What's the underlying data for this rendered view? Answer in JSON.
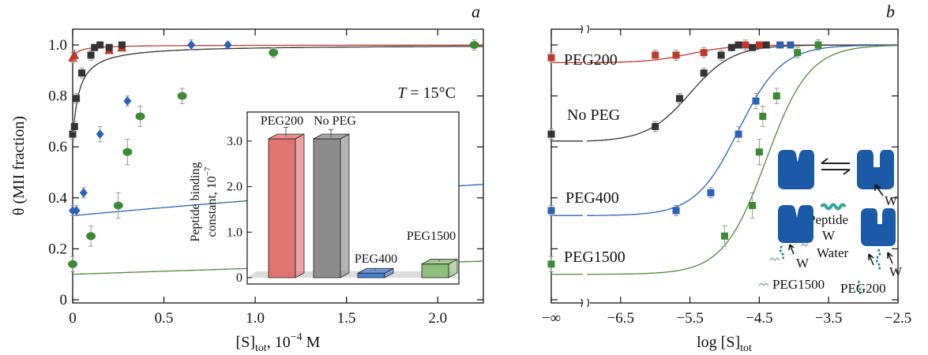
{
  "colors": {
    "peg200": "#c0392b",
    "nopeg": "#333333",
    "peg400": "#2a62b8",
    "peg1500": "#4f8a3a",
    "green_marker": "#3d8a35",
    "axis": "#111111",
    "protein": "#1a5aa6",
    "peptide": "#2fa59a"
  },
  "chart_data": [
    {
      "panel": "a",
      "type": "scatter",
      "xlabel_main": "[S]",
      "xlabel_sub": "tot",
      "xlabel_rest": ", 10",
      "xlabel_sup": "−4",
      "xlabel_unit": " M",
      "ylabel": "θ (MII fraction)",
      "annotation_T": "T",
      "annotation_rest": " = 15°C",
      "xlim": [
        0,
        2.25
      ],
      "ylim": [
        0,
        1.05
      ],
      "xticks": [
        "0",
        "0.5",
        "1.0",
        "1.5",
        "2.0"
      ],
      "xtick_values": [
        0,
        0.5,
        1.0,
        1.5,
        2.0
      ],
      "yticks": [
        "0",
        "0.2",
        "0.4",
        "0.6",
        "0.8",
        "1.0"
      ],
      "ytick_values": [
        0,
        0.2,
        0.4,
        0.6,
        0.8,
        1.0
      ],
      "series": [
        {
          "key": "peg200",
          "marker": "triangle",
          "points": [
            [
              0.0,
              0.95
            ],
            [
              0.01,
              0.96
            ],
            [
              0.2,
              0.98
            ],
            [
              0.27,
              0.99
            ]
          ],
          "errors": [
            0.02,
            0.02,
            0.01,
            0.01
          ],
          "curve": {
            "theta0": 0.95,
            "K": 30
          }
        },
        {
          "key": "nopeg",
          "marker": "square",
          "points": [
            [
              0.0,
              0.65
            ],
            [
              0.01,
              0.68
            ],
            [
              0.02,
              0.79
            ],
            [
              0.05,
              0.89
            ],
            [
              0.1,
              0.96
            ],
            [
              0.12,
              0.99
            ],
            [
              0.15,
              1.0
            ],
            [
              0.2,
              0.99
            ],
            [
              0.27,
              1.0
            ]
          ],
          "errors": [
            0.02,
            0.02,
            0.02,
            0.02,
            0.02,
            0.01,
            0.01,
            0.01,
            0.01
          ],
          "curve": {
            "theta0": 0.62,
            "K": 30
          }
        },
        {
          "key": "peg400",
          "marker": "diamond",
          "points": [
            [
              0.0,
              0.35
            ],
            [
              0.02,
              0.35
            ],
            [
              0.06,
              0.42
            ],
            [
              0.15,
              0.65
            ],
            [
              0.3,
              0.78
            ],
            [
              0.65,
              1.0
            ],
            [
              0.85,
              1.0
            ]
          ],
          "errors": [
            0.02,
            0.02,
            0.02,
            0.03,
            0.02,
            0.02,
            0.01
          ],
          "curve": {
            "theta0": 0.33,
            "K": 0.1
          }
        },
        {
          "key": "peg1500",
          "marker": "circle",
          "points": [
            [
              0.0,
              0.14
            ],
            [
              0.1,
              0.25
            ],
            [
              0.25,
              0.37
            ],
            [
              0.3,
              0.58
            ],
            [
              0.37,
              0.72
            ],
            [
              0.6,
              0.8
            ],
            [
              1.1,
              0.97
            ],
            [
              2.2,
              1.0
            ]
          ],
          "errors": [
            0.03,
            0.04,
            0.05,
            0.05,
            0.04,
            0.03,
            0.02,
            0.02
          ],
          "curve": {
            "theta0": 0.1,
            "K": 0.027
          }
        }
      ],
      "inset": {
        "type": "bar",
        "ylabel_line1": "Peptide binding",
        "ylabel_line2": "constant, 10",
        "ylabel_sup": "−7",
        "ylim": [
          0,
          3.5
        ],
        "yticks": [
          "0",
          "1.0",
          "2.0",
          "3.0"
        ],
        "ytick_values": [
          0,
          1.0,
          2.0,
          3.0
        ],
        "categories": [
          "PEG200",
          "No PEG",
          "PEG400",
          "PEG1500"
        ],
        "values": [
          3.05,
          3.05,
          0.1,
          0.3
        ],
        "errors": [
          0.2,
          0.15,
          0.05,
          0.05
        ],
        "bar_colors": [
          "#e07470",
          "#8c8c8c",
          "#4a7fcf",
          "#8fbf7a"
        ]
      }
    },
    {
      "panel": "b",
      "type": "scatter",
      "xlabel_main": "log [S]",
      "xlabel_sub": "tot",
      "xlim": [
        -7.5,
        -2.5
      ],
      "ylim": [
        0,
        1.05
      ],
      "xticks": [
        "−∞",
        "−6.5",
        "−5.5",
        "−4.5",
        "−3.5",
        "−2.5"
      ],
      "xtick_values": [
        -7.5,
        -6.5,
        -5.5,
        -4.5,
        -3.5,
        -2.5
      ],
      "ytick_values": [
        0,
        0.2,
        0.4,
        0.6,
        0.8,
        1.0
      ],
      "axis_break_x": -7.0,
      "series_labels": [
        "PEG200",
        "No PEG",
        "PEG400",
        "PEG1500"
      ],
      "series": [
        {
          "key": "peg200",
          "points": [
            [
              -7.5,
              0.95
            ],
            [
              -6.0,
              0.96
            ],
            [
              -5.7,
              0.96
            ],
            [
              -5.3,
              0.97
            ],
            [
              -4.7,
              1.0
            ],
            [
              -4.5,
              1.0
            ]
          ],
          "errors": [
            0.02,
            0.02,
            0.02,
            0.02,
            0.02,
            0.01
          ],
          "curve": {
            "theta0": 0.93,
            "log_mid": -5.5
          }
        },
        {
          "key": "nopeg",
          "points": [
            [
              -7.5,
              0.65
            ],
            [
              -6.0,
              0.68
            ],
            [
              -5.65,
              0.79
            ],
            [
              -5.3,
              0.89
            ],
            [
              -5.05,
              0.96
            ],
            [
              -4.9,
              0.99
            ],
            [
              -4.8,
              1.0
            ],
            [
              -4.6,
              0.99
            ],
            [
              -4.4,
              1.0
            ],
            [
              -4.2,
              1.0
            ]
          ],
          "errors": [
            0.02,
            0.02,
            0.02,
            0.02,
            0.02,
            0.01,
            0.01,
            0.01,
            0.01,
            0.01
          ],
          "curve": {
            "theta0": 0.62,
            "log_mid": -5.5
          }
        },
        {
          "key": "peg400",
          "points": [
            [
              -7.5,
              0.35
            ],
            [
              -5.7,
              0.35
            ],
            [
              -5.2,
              0.42
            ],
            [
              -4.8,
              0.65
            ],
            [
              -4.55,
              0.78
            ],
            [
              -4.2,
              1.0
            ],
            [
              -4.05,
              1.0
            ]
          ],
          "errors": [
            0.02,
            0.02,
            0.02,
            0.03,
            0.03,
            0.01,
            0.01
          ],
          "curve": {
            "theta0": 0.33,
            "log_mid": -4.8
          }
        },
        {
          "key": "peg1500",
          "points": [
            [
              -7.5,
              0.14
            ],
            [
              -5.0,
              0.25
            ],
            [
              -4.6,
              0.37
            ],
            [
              -4.5,
              0.58
            ],
            [
              -4.45,
              0.72
            ],
            [
              -4.25,
              0.8
            ],
            [
              -3.95,
              0.97
            ],
            [
              -3.65,
              1.0
            ]
          ],
          "errors": [
            0.03,
            0.04,
            0.05,
            0.05,
            0.04,
            0.03,
            0.02,
            0.02
          ],
          "curve": {
            "theta0": 0.1,
            "log_mid": -4.4
          }
        }
      ],
      "scheme": {
        "w_label": "W",
        "peptide_label": "Peptide",
        "water_label": "Water",
        "peg1500_label": "PEG1500",
        "peg200_label": "PEG200"
      }
    }
  ]
}
